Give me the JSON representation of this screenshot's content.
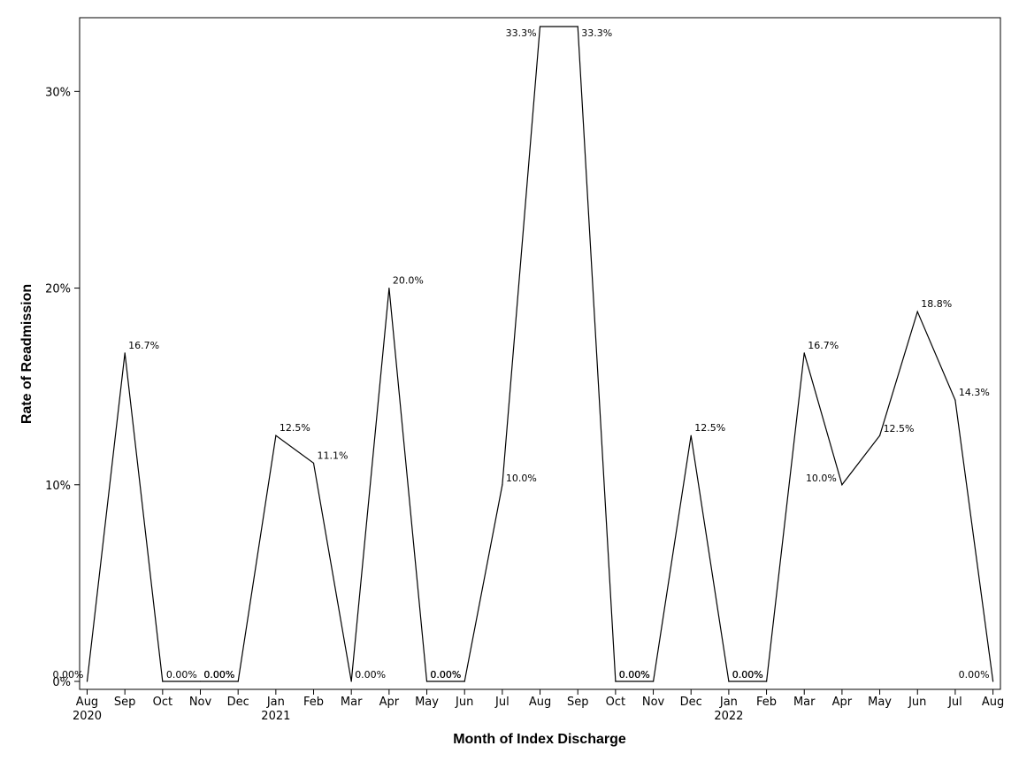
{
  "chart_data": {
    "type": "line",
    "xlabel": "Month of Index Discharge",
    "ylabel": "Rate of Readmission",
    "ylim": [
      0,
      33.3
    ],
    "y_ticks": [
      0,
      10,
      20,
      30
    ],
    "y_tick_labels": [
      "0%",
      "10%",
      "20%",
      "30%"
    ],
    "grid": false,
    "legend": "none",
    "x": [
      "2020-08",
      "2020-09",
      "2020-10",
      "2020-11",
      "2020-12",
      "2021-01",
      "2021-02",
      "2021-03",
      "2021-04",
      "2021-05",
      "2021-06",
      "2021-07",
      "2021-08",
      "2021-09",
      "2021-10",
      "2021-11",
      "2021-12",
      "2022-01",
      "2022-02",
      "2022-03",
      "2022-04",
      "2022-05",
      "2022-06",
      "2022-07",
      "2022-08"
    ],
    "x_tick_labels": [
      "Aug",
      "Sep",
      "Oct",
      "Nov",
      "Dec",
      "Jan",
      "Feb",
      "Mar",
      "Apr",
      "May",
      "Jun",
      "Jul",
      "Aug",
      "Sep",
      "Oct",
      "Nov",
      "Dec",
      "Jan",
      "Feb",
      "Mar",
      "Apr",
      "May",
      "Jun",
      "Jul",
      "Aug"
    ],
    "year_labels": [
      {
        "month": "2020-08",
        "label": "2020"
      },
      {
        "month": "2021-01",
        "label": "2021"
      },
      {
        "month": "2022-01",
        "label": "2022"
      }
    ],
    "series": [
      {
        "values": [
          0,
          16.7,
          0,
          0,
          0,
          12.5,
          11.1,
          0,
          20.0,
          0,
          0,
          10.0,
          33.3,
          33.3,
          0,
          0,
          12.5,
          0,
          0,
          16.7,
          10.0,
          12.5,
          18.8,
          14.3,
          0
        ],
        "data_labels": [
          "0.00%",
          "16.7%",
          "0.00%",
          "0.00%",
          "0.00%",
          "12.5%",
          "11.1%",
          "0.00%",
          "20.0%",
          "0.00%",
          "0.00%",
          "10.0%",
          "33.3%",
          "33.3%",
          "0.00%",
          "0.00%",
          "12.5%",
          "0.00%",
          "0.00%",
          "16.7%",
          "10.0%",
          "12.5%",
          "18.8%",
          "14.3%",
          "0.00%"
        ],
        "color": "#000000"
      }
    ]
  }
}
